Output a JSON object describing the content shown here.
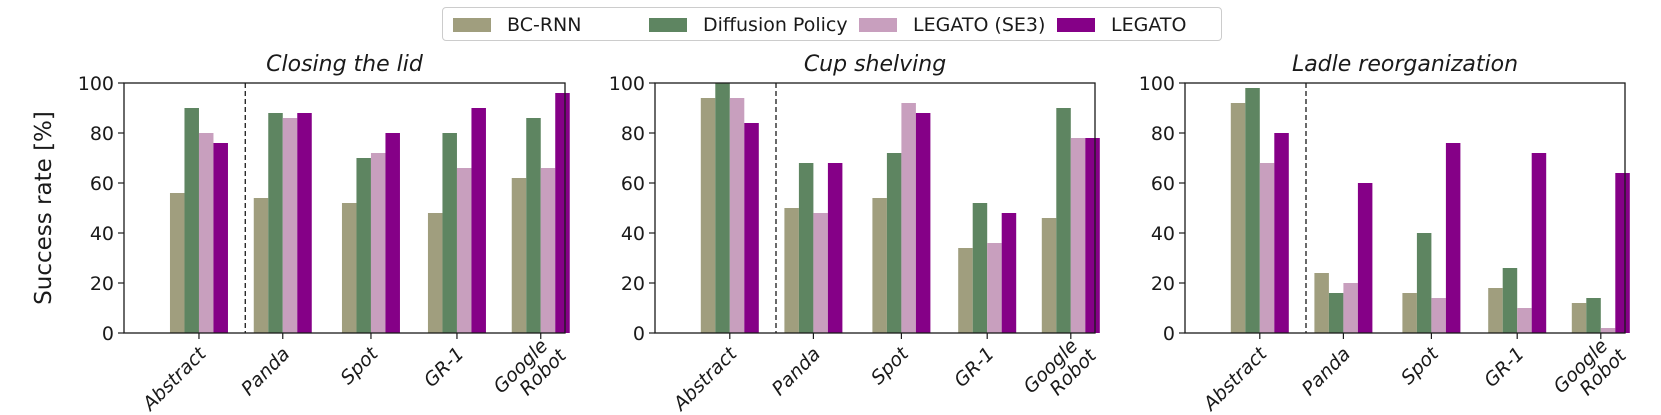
{
  "legend": {
    "items": [
      {
        "label": "BC-RNN",
        "color": "#a09e7e"
      },
      {
        "label": "Diffusion Policy",
        "color": "#5e8561"
      },
      {
        "label": "LEGATO (SE3)",
        "color": "#c89fbe"
      },
      {
        "label": "LEGATO",
        "color": "#850087"
      }
    ]
  },
  "ylabel": "Success rate [%]",
  "chart_data": [
    {
      "type": "bar",
      "title": "Closing the lid",
      "categories": [
        "Abstract",
        "Panda",
        "Spot",
        "GR-1",
        "Google\nRobot"
      ],
      "ylim": [
        0,
        100
      ],
      "yticks": [
        0,
        20,
        40,
        60,
        80,
        100
      ],
      "series": [
        {
          "name": "BC-RNN",
          "values": [
            56,
            54,
            52,
            48,
            62
          ]
        },
        {
          "name": "Diffusion Policy",
          "values": [
            90,
            88,
            70,
            80,
            86
          ]
        },
        {
          "name": "LEGATO (SE3)",
          "values": [
            80,
            86,
            72,
            66,
            66
          ]
        },
        {
          "name": "LEGATO",
          "values": [
            76,
            88,
            80,
            90,
            96
          ]
        }
      ]
    },
    {
      "type": "bar",
      "title": "Cup shelving",
      "categories": [
        "Abstract",
        "Panda",
        "Spot",
        "GR-1",
        "Google\nRobot"
      ],
      "ylim": [
        0,
        100
      ],
      "yticks": [
        0,
        20,
        40,
        60,
        80,
        100
      ],
      "series": [
        {
          "name": "BC-RNN",
          "values": [
            94,
            50,
            54,
            34,
            46
          ]
        },
        {
          "name": "Diffusion Policy",
          "values": [
            100,
            68,
            72,
            52,
            90
          ]
        },
        {
          "name": "LEGATO (SE3)",
          "values": [
            94,
            48,
            92,
            36,
            78
          ]
        },
        {
          "name": "LEGATO",
          "values": [
            84,
            68,
            88,
            48,
            78
          ]
        }
      ]
    },
    {
      "type": "bar",
      "title": "Ladle reorganization",
      "categories": [
        "Abstract",
        "Panda",
        "Spot",
        "GR-1",
        "Google\nRobot"
      ],
      "ylim": [
        0,
        100
      ],
      "yticks": [
        0,
        20,
        40,
        60,
        80,
        100
      ],
      "series": [
        {
          "name": "BC-RNN",
          "values": [
            92,
            24,
            16,
            18,
            12
          ]
        },
        {
          "name": "Diffusion Policy",
          "values": [
            98,
            16,
            40,
            26,
            14
          ]
        },
        {
          "name": "LEGATO (SE3)",
          "values": [
            68,
            20,
            14,
            10,
            2
          ]
        },
        {
          "name": "LEGATO",
          "values": [
            80,
            60,
            76,
            72,
            64
          ]
        }
      ]
    }
  ]
}
